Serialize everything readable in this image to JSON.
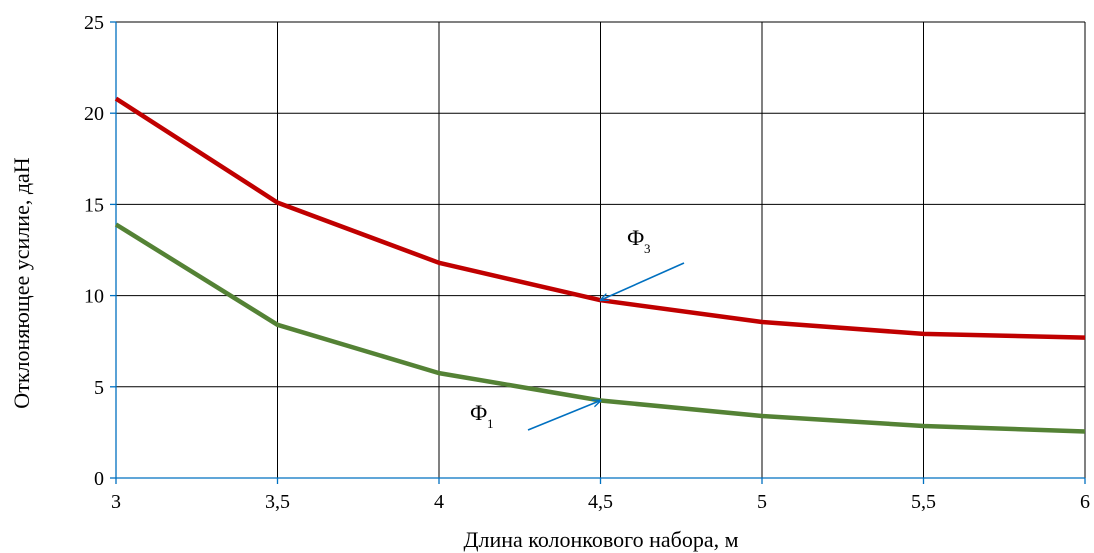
{
  "chart_data": {
    "type": "line",
    "xlabel": "Длина колонкового набора, м",
    "ylabel": "Отклоняющее усилие, даН",
    "xlim": [
      3,
      6
    ],
    "ylim": [
      0,
      25
    ],
    "x_ticks": [
      "3",
      "3,5",
      "4",
      "4,5",
      "5",
      "5,5",
      "6"
    ],
    "y_ticks": [
      "0",
      "5",
      "10",
      "15",
      "20",
      "25"
    ],
    "grid": true,
    "series": [
      {
        "id": "f3",
        "color": "#c00000",
        "x": [
          3,
          3.5,
          4,
          4.5,
          5,
          5.5,
          6
        ],
        "y": [
          20.8,
          15.1,
          11.8,
          9.75,
          8.55,
          7.9,
          7.7
        ]
      },
      {
        "id": "f1",
        "color": "#548235",
        "x": [
          3,
          3.5,
          4,
          4.5,
          5,
          5.5,
          6
        ],
        "y": [
          13.9,
          8.4,
          5.75,
          4.25,
          3.4,
          2.85,
          2.55
        ]
      }
    ],
    "annotations": [
      {
        "id": "f3",
        "letter": "Ф",
        "sub": "3",
        "target_x": 4.5,
        "target_y": 9.75,
        "arrow_color": "#0070c0"
      },
      {
        "id": "f1",
        "letter": "Ф",
        "sub": "1",
        "target_x": 4.5,
        "target_y": 4.25,
        "arrow_color": "#0070c0"
      }
    ],
    "colors": {
      "axis": "#0070c0",
      "grid": "#000000"
    }
  }
}
